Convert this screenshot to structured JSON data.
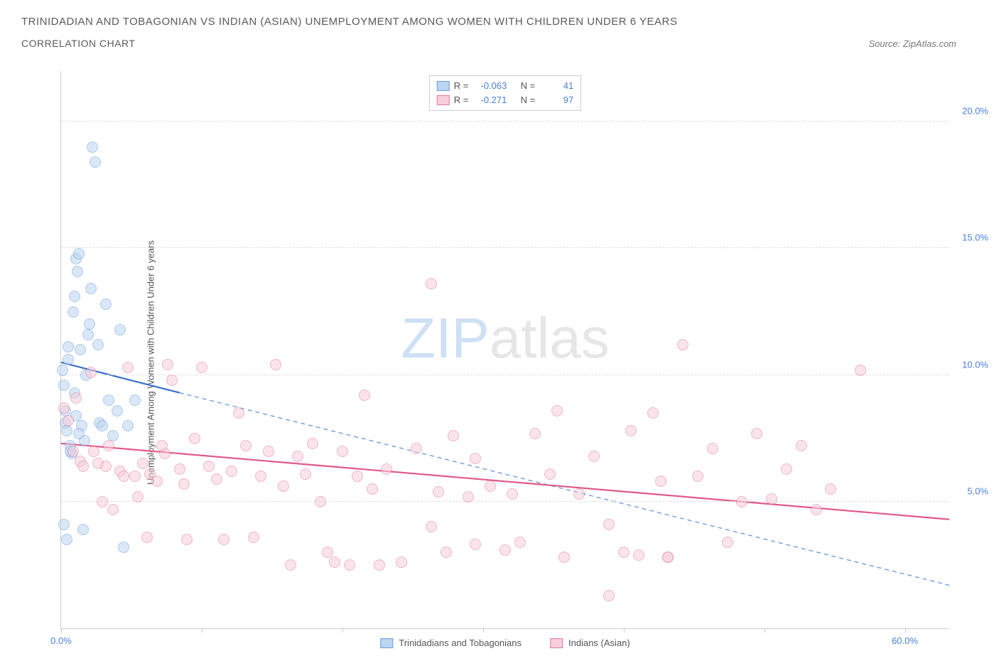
{
  "title_line1": "TRINIDADIAN AND TOBAGONIAN VS INDIAN (ASIAN) UNEMPLOYMENT AMONG WOMEN WITH CHILDREN UNDER 6 YEARS",
  "title_line2": "CORRELATION CHART",
  "source_label": "Source: ZipAtlas.com",
  "yaxis_title": "Unemployment Among Women with Children Under 6 years",
  "watermark": {
    "part1": "ZIP",
    "part2": "atlas"
  },
  "chart": {
    "type": "scatter",
    "xlim": [
      0,
      60
    ],
    "ylim": [
      0,
      22
    ],
    "xtick_positions": [
      0.0,
      9.5,
      19.0,
      28.5,
      38.0,
      47.5,
      57.0
    ],
    "x_axis_labels": [
      {
        "pos": 0.0,
        "text": "0.0%"
      },
      {
        "pos": 57.0,
        "text": "60.0%"
      }
    ],
    "yticks": [
      5.0,
      10.0,
      15.0,
      20.0
    ],
    "ytick_labels": [
      "5.0%",
      "10.0%",
      "15.0%",
      "20.0%"
    ],
    "grid_color": "#dddddd",
    "axis_color": "#cccccc",
    "tick_label_color": "#4a7fd8",
    "background_color": "#ffffff",
    "marker_radius": 8,
    "marker_opacity": 0.55,
    "marker_stroke_width": 1.2,
    "series": [
      {
        "name": "Trinidadians and Tobagonians",
        "color_fill": "#bcd4f0",
        "color_stroke": "#6b9ed9",
        "legend_R": "-0.063",
        "legend_N": "41",
        "trend": {
          "solid_from": [
            0,
            10.5
          ],
          "solid_to": [
            8,
            9.3
          ],
          "dash_to": [
            60,
            1.7
          ],
          "width": 2.2
        },
        "points": [
          [
            0.1,
            10.2
          ],
          [
            0.2,
            9.6
          ],
          [
            0.3,
            8.1
          ],
          [
            0.4,
            7.8
          ],
          [
            0.5,
            10.6
          ],
          [
            0.5,
            11.1
          ],
          [
            0.6,
            7.2
          ],
          [
            0.7,
            6.9
          ],
          [
            0.8,
            12.5
          ],
          [
            0.9,
            13.1
          ],
          [
            1.0,
            14.6
          ],
          [
            1.1,
            14.1
          ],
          [
            1.2,
            14.8
          ],
          [
            1.3,
            11.0
          ],
          [
            1.4,
            8.0
          ],
          [
            1.5,
            3.9
          ],
          [
            1.6,
            7.4
          ],
          [
            1.7,
            10.0
          ],
          [
            1.8,
            11.6
          ],
          [
            1.9,
            12.0
          ],
          [
            2.0,
            13.4
          ],
          [
            2.1,
            19.0
          ],
          [
            2.3,
            18.4
          ],
          [
            0.2,
            4.1
          ],
          [
            0.4,
            3.5
          ],
          [
            2.5,
            11.2
          ],
          [
            2.6,
            8.1
          ],
          [
            2.8,
            8.0
          ],
          [
            3.0,
            12.8
          ],
          [
            3.2,
            9.0
          ],
          [
            3.5,
            7.6
          ],
          [
            3.8,
            8.6
          ],
          [
            4.0,
            11.8
          ],
          [
            4.2,
            3.2
          ],
          [
            0.3,
            8.6
          ],
          [
            0.6,
            7.0
          ],
          [
            0.9,
            9.3
          ],
          [
            1.2,
            7.7
          ],
          [
            1.0,
            8.4
          ],
          [
            4.5,
            8.0
          ],
          [
            5.0,
            9.0
          ]
        ]
      },
      {
        "name": "Indians (Asian)",
        "color_fill": "#f6cfda",
        "color_stroke": "#e27a9c",
        "legend_R": "-0.271",
        "legend_N": "97",
        "trend": {
          "solid_from": [
            0,
            7.3
          ],
          "solid_to": [
            60,
            4.3
          ],
          "width": 2.2
        },
        "points": [
          [
            0.2,
            8.7
          ],
          [
            0.5,
            8.2
          ],
          [
            0.8,
            7.0
          ],
          [
            1.0,
            9.1
          ],
          [
            1.3,
            6.6
          ],
          [
            1.5,
            6.4
          ],
          [
            2.0,
            10.1
          ],
          [
            2.2,
            7.0
          ],
          [
            2.5,
            6.5
          ],
          [
            2.8,
            5.0
          ],
          [
            3.0,
            6.4
          ],
          [
            3.2,
            7.2
          ],
          [
            3.5,
            4.7
          ],
          [
            4.0,
            6.2
          ],
          [
            4.2,
            6.0
          ],
          [
            4.5,
            10.3
          ],
          [
            5.0,
            6.0
          ],
          [
            5.2,
            5.2
          ],
          [
            5.5,
            6.5
          ],
          [
            5.8,
            3.6
          ],
          [
            6.0,
            6.1
          ],
          [
            6.5,
            5.8
          ],
          [
            7.0,
            6.9
          ],
          [
            7.2,
            10.4
          ],
          [
            7.5,
            9.8
          ],
          [
            8.0,
            6.3
          ],
          [
            8.3,
            5.7
          ],
          [
            8.5,
            3.5
          ],
          [
            9.0,
            7.5
          ],
          [
            9.5,
            10.3
          ],
          [
            10.0,
            6.4
          ],
          [
            10.5,
            5.9
          ],
          [
            11.0,
            3.5
          ],
          [
            11.5,
            6.2
          ],
          [
            12.0,
            8.5
          ],
          [
            12.5,
            7.2
          ],
          [
            13.0,
            3.6
          ],
          [
            13.5,
            6.0
          ],
          [
            14.0,
            7.0
          ],
          [
            14.5,
            10.4
          ],
          [
            15.0,
            5.6
          ],
          [
            15.5,
            2.5
          ],
          [
            16.0,
            6.8
          ],
          [
            16.5,
            6.1
          ],
          [
            17.0,
            7.3
          ],
          [
            17.5,
            5.0
          ],
          [
            18.0,
            3.0
          ],
          [
            18.5,
            2.6
          ],
          [
            19.0,
            7.0
          ],
          [
            19.5,
            2.5
          ],
          [
            20.0,
            6.0
          ],
          [
            20.5,
            9.2
          ],
          [
            21.0,
            5.5
          ],
          [
            22.0,
            6.3
          ],
          [
            23.0,
            2.6
          ],
          [
            24.0,
            7.1
          ],
          [
            25.0,
            13.6
          ],
          [
            25.0,
            4.0
          ],
          [
            25.5,
            5.4
          ],
          [
            26.0,
            3.0
          ],
          [
            26.5,
            7.6
          ],
          [
            27.5,
            5.2
          ],
          [
            28.0,
            6.7
          ],
          [
            29.0,
            5.6
          ],
          [
            30.0,
            3.1
          ],
          [
            30.5,
            5.3
          ],
          [
            31.0,
            3.4
          ],
          [
            32.0,
            7.7
          ],
          [
            33.0,
            6.1
          ],
          [
            33.5,
            8.6
          ],
          [
            34.0,
            2.8
          ],
          [
            35.0,
            5.3
          ],
          [
            36.0,
            6.8
          ],
          [
            37.0,
            4.1
          ],
          [
            38.0,
            3.0
          ],
          [
            38.5,
            7.8
          ],
          [
            39.0,
            2.9
          ],
          [
            40.0,
            8.5
          ],
          [
            40.5,
            5.8
          ],
          [
            41.0,
            2.8
          ],
          [
            41.0,
            2.8
          ],
          [
            42.0,
            11.2
          ],
          [
            43.0,
            6.0
          ],
          [
            44.0,
            7.1
          ],
          [
            45.0,
            3.4
          ],
          [
            46.0,
            5.0
          ],
          [
            47.0,
            7.7
          ],
          [
            48.0,
            5.1
          ],
          [
            49.0,
            6.3
          ],
          [
            50.0,
            7.2
          ],
          [
            51.0,
            4.7
          ],
          [
            52.0,
            5.5
          ],
          [
            54.0,
            10.2
          ],
          [
            37.0,
            1.3
          ],
          [
            28.0,
            3.3
          ],
          [
            21.5,
            2.5
          ],
          [
            6.8,
            7.2
          ]
        ]
      }
    ]
  },
  "bottom_legend": [
    {
      "swatch_fill": "#bcd4f0",
      "swatch_stroke": "#6b9ed9",
      "label": "Trinidadians and Tobagonians"
    },
    {
      "swatch_fill": "#f6cfda",
      "swatch_stroke": "#e27a9c",
      "label": "Indians (Asian)"
    }
  ],
  "stats_legend": {
    "r_label": "R =",
    "n_label": "N ="
  }
}
